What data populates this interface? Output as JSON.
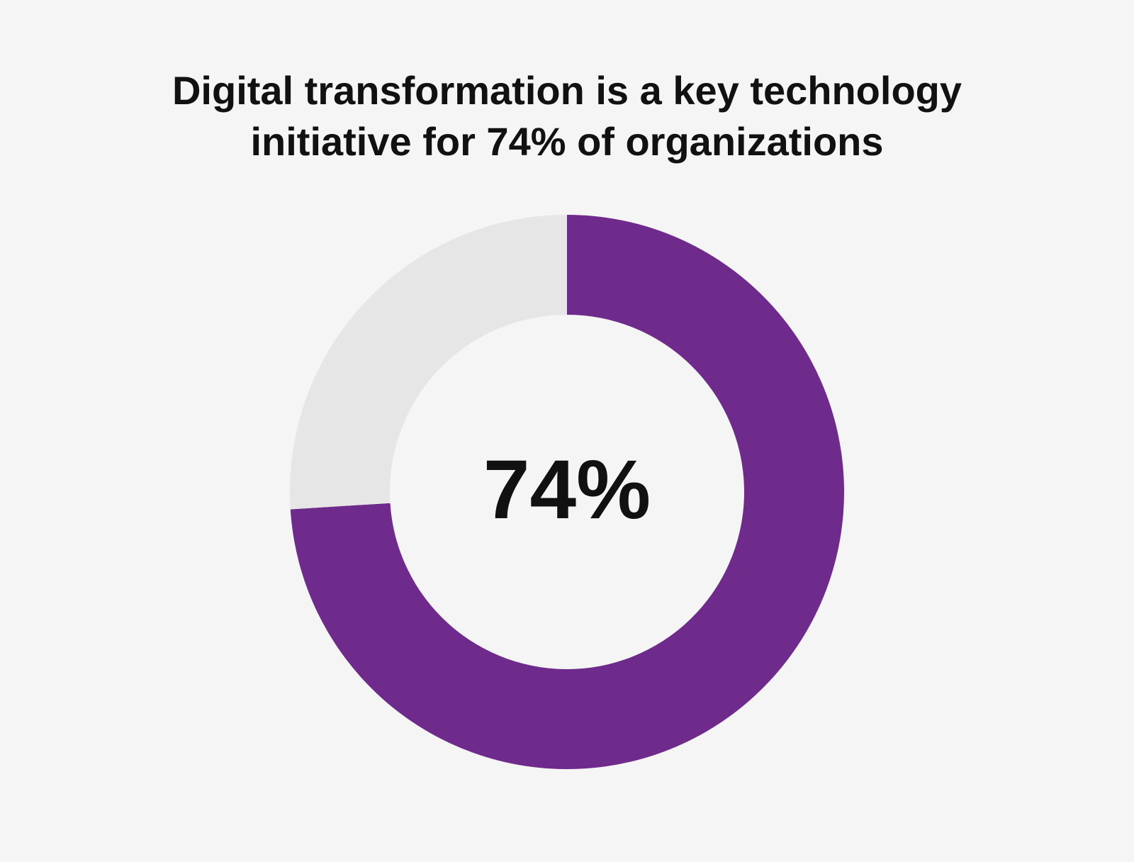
{
  "chart_data": {
    "type": "donut",
    "title": "Digital transformation is a key technology initiative for 74% of organizations",
    "values": [
      74,
      26
    ],
    "colors": [
      "#6f2b8c",
      "#e6e6e6"
    ],
    "center_label": "74%"
  }
}
